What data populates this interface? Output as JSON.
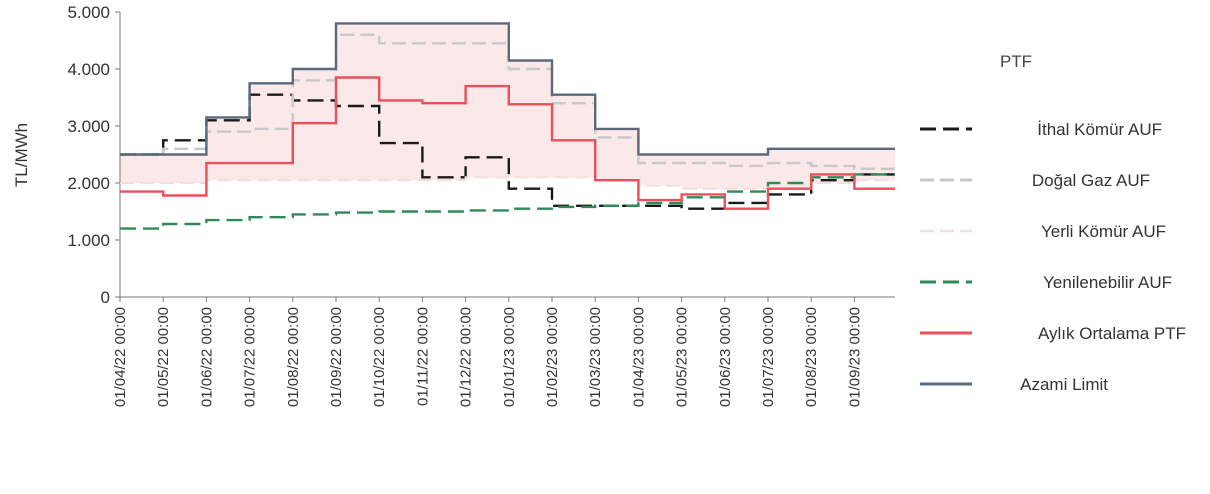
{
  "chart_data": {
    "type": "line",
    "step": true,
    "title": "",
    "xlabel": "",
    "ylabel": "TL/MWh",
    "ylim": [
      0,
      5000
    ],
    "yticks": [
      "0",
      "1.000",
      "2.000",
      "3.000",
      "4.000",
      "5.000"
    ],
    "ytick_values": [
      0,
      1000,
      2000,
      3000,
      4000,
      5000
    ],
    "categories": [
      "01/04/22 00:00",
      "01/05/22 00:00",
      "01/06/22 00:00",
      "01/07/22 00:00",
      "01/08/22 00:00",
      "01/09/22 00:00",
      "01/10/22 00:00",
      "01/11/22 00:00",
      "01/12/22 00:00",
      "01/01/23 00:00",
      "01/02/23 00:00",
      "01/03/23 00:00",
      "01/04/23 00:00",
      "01/05/23 00:00",
      "01/06/23 00:00",
      "01/07/23 00:00",
      "01/08/23 00:00",
      "01/09/23 00:00"
    ],
    "legend_title": "PTF",
    "legend_position": "right",
    "grid": false,
    "series": [
      {
        "name": "İthal Kömür AUF",
        "style": "dashed",
        "color": "#1a1a1a",
        "values": [
          2500,
          2750,
          3100,
          3550,
          3450,
          3350,
          2700,
          2100,
          2450,
          1900,
          1600,
          1600,
          1600,
          1550,
          1650,
          1800,
          2050,
          2150
        ]
      },
      {
        "name": "Doğal Gaz AUF",
        "style": "dashed",
        "color": "#c8c8c8",
        "values": [
          2500,
          2600,
          2900,
          2950,
          3800,
          4600,
          4450,
          4450,
          4450,
          4000,
          3400,
          2800,
          2350,
          2350,
          2300,
          2350,
          2300,
          2250
        ]
      },
      {
        "name": "Yerli Kömür AUF",
        "style": "dashed",
        "color": "#f2dede",
        "values": [
          2000,
          2000,
          2050,
          2050,
          2050,
          2050,
          2050,
          2050,
          2100,
          2100,
          2100,
          2050,
          1950,
          1900,
          1900,
          1900,
          2000,
          2050
        ]
      },
      {
        "name": "Yenilenebilir AUF",
        "style": "dashed",
        "color": "#2e8b57",
        "values": [
          1200,
          1280,
          1350,
          1400,
          1450,
          1480,
          1500,
          1500,
          1520,
          1550,
          1580,
          1600,
          1650,
          1750,
          1850,
          2000,
          2100,
          2150
        ]
      },
      {
        "name": "Aylık Ortalama PTF",
        "style": "solid",
        "color": "#e8505b",
        "values": [
          1850,
          1780,
          2350,
          2350,
          3050,
          3850,
          3450,
          3400,
          3700,
          3380,
          2750,
          2050,
          1700,
          1800,
          1550,
          1900,
          2150,
          1900
        ]
      },
      {
        "name": "Azami Limit",
        "style": "solid",
        "color": "#5a6a7a",
        "values": [
          2500,
          2500,
          3150,
          3750,
          4000,
          4800,
          4800,
          4800,
          4800,
          4150,
          3550,
          2950,
          2500,
          2500,
          2500,
          2600,
          2600,
          2600
        ]
      }
    ]
  }
}
